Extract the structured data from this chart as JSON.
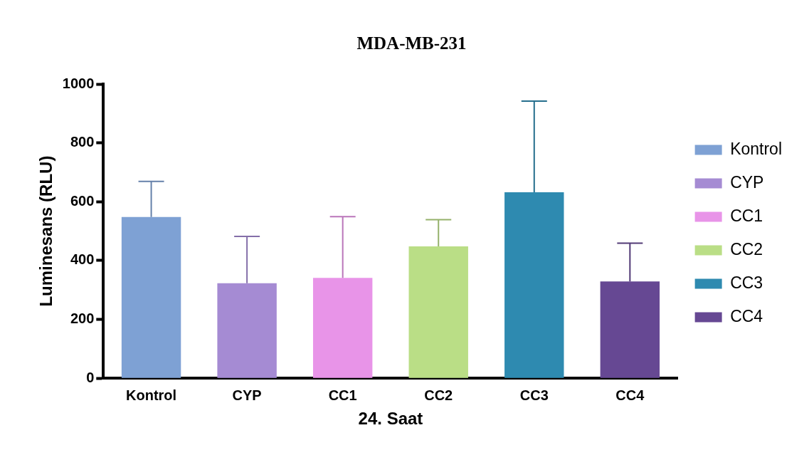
{
  "chart_data": {
    "type": "bar",
    "title": "MDA-MB-231",
    "xlabel": "24. Saat",
    "ylabel": "Luminesans (RLU)",
    "categories": [
      "Kontrol",
      "CYP",
      "CC1",
      "CC2",
      "CC3",
      "CC4"
    ],
    "series": [
      {
        "name": "Kontrol",
        "color": "#7ea1d4",
        "values": [
          548,
          null,
          null,
          null,
          null,
          null
        ],
        "errors": [
          [
            548,
            669
          ],
          null,
          null,
          null,
          null,
          null
        ]
      },
      {
        "name": "CYP",
        "color": "#a58bd3",
        "values": [
          null,
          323,
          null,
          null,
          null,
          null
        ],
        "errors": [
          null,
          [
            323,
            482
          ],
          null,
          null,
          null,
          null
        ]
      },
      {
        "name": "CC1",
        "color": "#e894e8",
        "values": [
          null,
          null,
          341,
          null,
          null,
          null
        ],
        "errors": [
          null,
          null,
          [
            341,
            549
          ],
          null,
          null,
          null
        ]
      },
      {
        "name": "CC2",
        "color": "#bade86",
        "values": [
          null,
          null,
          null,
          448,
          null,
          null
        ],
        "errors": [
          null,
          null,
          null,
          [
            448,
            539
          ],
          null,
          null
        ]
      },
      {
        "name": "CC3",
        "color": "#2e8ab0",
        "values": [
          null,
          null,
          null,
          null,
          632,
          null
        ],
        "errors": [
          null,
          null,
          null,
          null,
          [
            632,
            942
          ],
          null
        ]
      },
      {
        "name": "CC4",
        "color": "#664893",
        "values": [
          null,
          null,
          null,
          null,
          null,
          329
        ],
        "errors": [
          null,
          null,
          null,
          null,
          null,
          [
            329,
            459
          ]
        ]
      }
    ],
    "ylim": [
      0,
      1000
    ],
    "yticks": [
      0,
      200,
      400,
      600,
      800,
      1000
    ],
    "grid": false,
    "legend": "right"
  }
}
